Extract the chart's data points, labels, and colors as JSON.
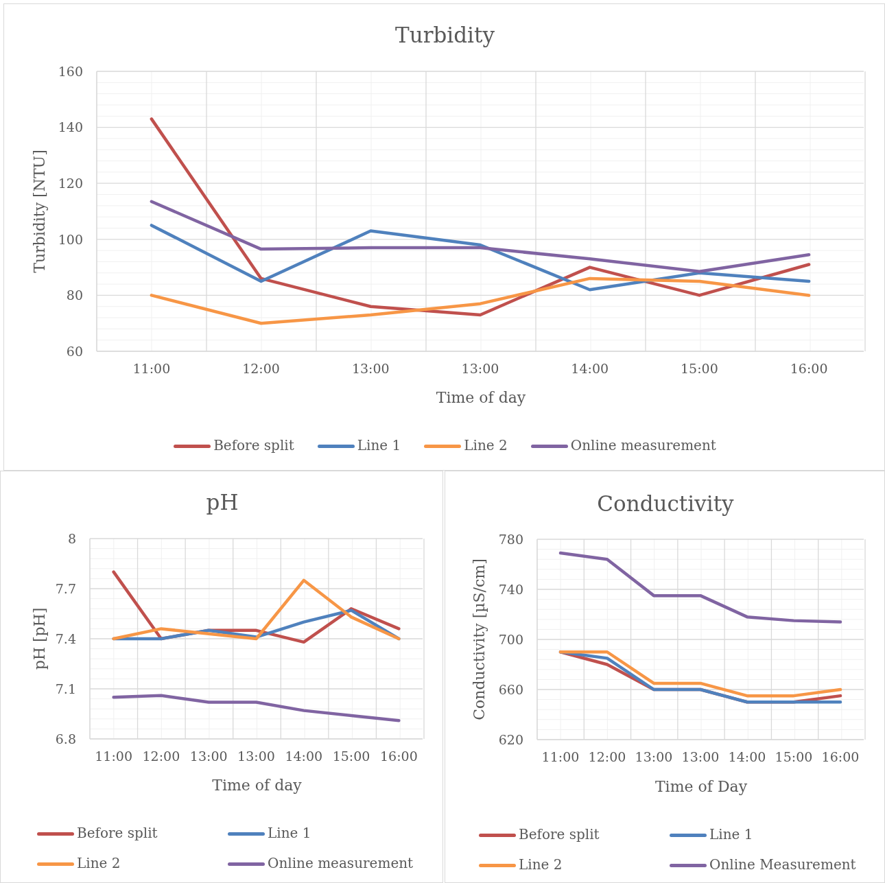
{
  "chart_data": [
    {
      "type": "line",
      "title": "Turbidity",
      "xlabel": "Time of day",
      "ylabel": "Turbidity [NTU]",
      "categories": [
        "11:00",
        "12:00",
        "13:00",
        "13:00",
        "14:00",
        "15:00",
        "16:00"
      ],
      "series": [
        {
          "name": "Before split",
          "color": "#c0504d",
          "values": [
            143,
            86,
            76,
            73,
            90,
            80,
            91
          ]
        },
        {
          "name": "Line 1",
          "color": "#4f81bd",
          "values": [
            105,
            85,
            103,
            98,
            82,
            88,
            85
          ]
        },
        {
          "name": "Line 2",
          "color": "#f79646",
          "values": [
            80,
            70,
            73,
            77,
            86,
            85,
            80
          ]
        },
        {
          "name": "Online measurement",
          "color": "#8064a2",
          "values": [
            113.5,
            96.5,
            97,
            97,
            93,
            88.5,
            94.5
          ]
        }
      ],
      "ylim": [
        60,
        160
      ],
      "yticks": [
        60,
        80,
        100,
        120,
        140,
        160
      ],
      "grid": true,
      "legend": "bottom",
      "line_style": "solid"
    },
    {
      "type": "line",
      "title": "pH",
      "xlabel": "Time of day",
      "ylabel": "pH [pH]",
      "categories": [
        "11:00",
        "12:00",
        "13:00",
        "13:00",
        "14:00",
        "15:00",
        "16:00"
      ],
      "series": [
        {
          "name": "Before split",
          "color": "#c0504d",
          "values": [
            7.8,
            7.4,
            7.45,
            7.45,
            7.38,
            7.58,
            7.46
          ]
        },
        {
          "name": "Line 1",
          "color": "#4f81bd",
          "values": [
            7.4,
            7.4,
            7.45,
            7.41,
            7.5,
            7.57,
            7.4
          ]
        },
        {
          "name": "Line 2",
          "color": "#f79646",
          "values": [
            7.4,
            7.46,
            7.43,
            7.4,
            7.75,
            7.53,
            7.4
          ]
        },
        {
          "name": "Online measurement",
          "color": "#8064a2",
          "values": [
            7.05,
            7.06,
            7.02,
            7.02,
            6.97,
            6.94,
            6.91
          ]
        }
      ],
      "ylim": [
        6.8,
        8
      ],
      "yticks": [
        6.8,
        7.1,
        7.4,
        7.7,
        8
      ],
      "grid": true,
      "legend": "bottom",
      "line_style": "solid"
    },
    {
      "type": "line",
      "title": "Conductivity",
      "xlabel": "Time of Day",
      "ylabel": "Conductivity [µS/cm]",
      "categories": [
        "11:00",
        "12:00",
        "13:00",
        "13:00",
        "14:00",
        "15:00",
        "16:00"
      ],
      "series": [
        {
          "name": "Before split",
          "color": "#c0504d",
          "values": [
            690,
            680,
            660,
            660,
            650,
            650,
            655
          ]
        },
        {
          "name": "Line 1",
          "color": "#4f81bd",
          "values": [
            690,
            685,
            660,
            660,
            650,
            650,
            650
          ]
        },
        {
          "name": "Line 2",
          "color": "#f79646",
          "values": [
            690,
            690,
            665,
            665,
            655,
            655,
            660
          ]
        },
        {
          "name": "Online Measurement",
          "color": "#8064a2",
          "values": [
            769,
            764,
            735,
            735,
            718,
            715,
            714
          ]
        }
      ],
      "ylim": [
        620,
        780
      ],
      "yticks": [
        620,
        660,
        700,
        740,
        780
      ],
      "grid": true,
      "legend": "bottom",
      "line_style": "solid"
    }
  ]
}
